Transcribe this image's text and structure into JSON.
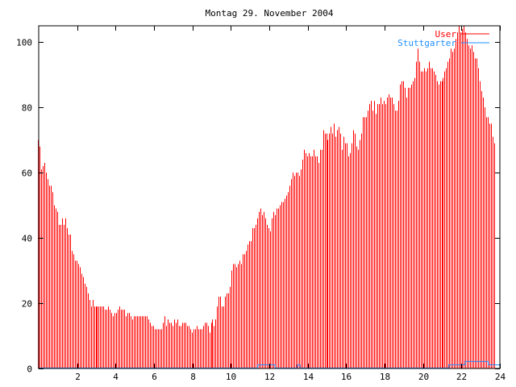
{
  "chart_data": {
    "type": "bar",
    "title": "Montag 29. November 2004",
    "xlabel": "",
    "ylabel": "",
    "xlim": [
      0,
      24
    ],
    "ylim": [
      0,
      105
    ],
    "x_ticks": [
      2,
      4,
      6,
      8,
      10,
      12,
      14,
      16,
      18,
      20,
      22,
      24
    ],
    "y_ticks": [
      0,
      20,
      40,
      60,
      80,
      100
    ],
    "grid": false,
    "legend_position": "top-right",
    "series": [
      {
        "name": "User",
        "style": "impulses",
        "color": "#ff0000",
        "x_start": 0,
        "x_step_minutes": 5,
        "values": [
          70,
          68,
          61,
          62,
          63,
          60,
          58,
          56,
          56,
          54,
          50,
          49,
          48,
          44,
          44,
          46,
          44,
          46,
          43,
          41,
          41,
          36,
          35,
          33,
          33,
          32,
          31,
          29,
          28,
          26,
          25,
          23,
          21,
          19,
          21,
          19,
          19,
          19,
          19,
          19,
          19,
          19,
          18,
          18,
          19,
          18,
          17,
          16,
          17,
          17,
          18,
          19,
          18,
          18,
          18,
          16,
          17,
          17,
          16,
          15,
          16,
          16,
          16,
          16,
          16,
          16,
          16,
          16,
          16,
          15,
          14,
          13,
          13,
          12,
          12,
          12,
          12,
          12,
          14,
          16,
          13,
          15,
          14,
          14,
          13,
          15,
          14,
          15,
          13,
          13,
          14,
          14,
          14,
          13,
          13,
          12,
          11,
          12,
          12,
          13,
          12,
          12,
          12,
          13,
          14,
          14,
          13,
          11,
          14,
          15,
          13,
          15,
          19,
          22,
          22,
          19,
          19,
          22,
          23,
          23,
          25,
          30,
          32,
          32,
          31,
          32,
          33,
          32,
          35,
          35,
          36,
          38,
          39,
          39,
          43,
          43,
          44,
          46,
          48,
          49,
          47,
          48,
          46,
          44,
          43,
          42,
          46,
          48,
          47,
          49,
          49,
          50,
          51,
          51,
          52,
          53,
          54,
          56,
          58,
          60,
          59,
          60,
          60,
          59,
          61,
          64,
          67,
          66,
          65,
          66,
          65,
          65,
          67,
          65,
          65,
          63,
          67,
          67,
          73,
          72,
          72,
          70,
          72,
          74,
          72,
          75,
          71,
          73,
          74,
          72,
          67,
          71,
          69,
          69,
          65,
          66,
          69,
          73,
          72,
          68,
          67,
          70,
          72,
          77,
          77,
          77,
          79,
          81,
          82,
          79,
          82,
          78,
          81,
          81,
          83,
          81,
          82,
          81,
          83,
          84,
          83,
          83,
          81,
          79,
          79,
          82,
          87,
          88,
          88,
          86,
          83,
          86,
          86,
          87,
          88,
          89,
          94,
          98,
          94,
          91,
          91,
          92,
          91,
          92,
          94,
          92,
          92,
          91,
          90,
          88,
          87,
          88,
          88,
          89,
          91,
          92,
          94,
          95,
          98,
          97,
          98,
          101,
          103,
          105,
          103,
          104,
          105,
          103,
          101,
          99,
          98,
          99,
          97,
          95,
          95,
          92,
          88,
          85,
          83,
          80,
          77,
          77,
          75,
          75,
          71,
          69
        ]
      },
      {
        "name": "Stuttgarter",
        "style": "steps",
        "color": "#1e8fff",
        "points": [
          [
            0,
            0
          ],
          [
            11.4,
            0
          ],
          [
            11.4,
            1
          ],
          [
            12.3,
            1
          ],
          [
            12.3,
            0
          ],
          [
            13.45,
            0
          ],
          [
            13.45,
            1
          ],
          [
            13.6,
            1
          ],
          [
            13.6,
            0
          ],
          [
            21.35,
            0
          ],
          [
            21.35,
            1
          ],
          [
            22.2,
            1
          ],
          [
            22.2,
            2
          ],
          [
            23.4,
            2
          ],
          [
            23.4,
            1
          ],
          [
            24,
            1
          ]
        ]
      }
    ]
  }
}
